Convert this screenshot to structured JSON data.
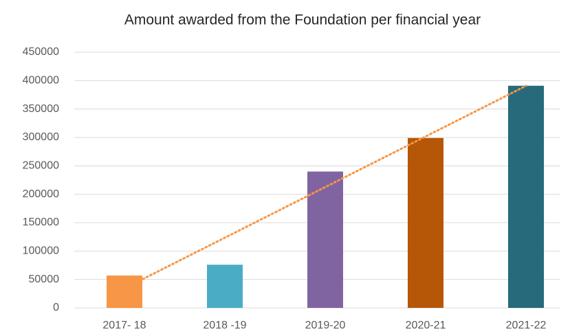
{
  "chart_data": {
    "type": "bar",
    "title": "Amount awarded from the Foundation per financial year",
    "categories": [
      "2017- 18",
      "2018 -19",
      "2019-20",
      "2020-21",
      "2021-22"
    ],
    "values": [
      57000,
      76000,
      240000,
      299000,
      391000
    ],
    "colors": [
      "#f79646",
      "#4bacc6",
      "#8064a2",
      "#b65708",
      "#276a7c"
    ],
    "trendline": {
      "type": "linear",
      "color": "#f79646"
    },
    "ylim": [
      0,
      450000
    ],
    "yticks": [
      0,
      50000,
      100000,
      150000,
      200000,
      250000,
      300000,
      350000,
      400000,
      450000
    ],
    "grid": true
  }
}
